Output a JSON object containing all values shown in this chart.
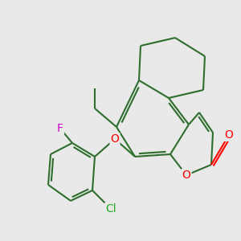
{
  "bg_color": "#e9e9e9",
  "bond_color": "#2d6e2d",
  "bond_width": 1.5,
  "atom_colors": {
    "O": "#ff0000",
    "F": "#cc00cc",
    "Cl": "#22aa22",
    "C": "#2d6e2d"
  },
  "figsize": [
    3.0,
    3.0
  ],
  "dpi": 100,
  "xlim": [
    0,
    300
  ],
  "ylim": [
    0,
    300
  ]
}
